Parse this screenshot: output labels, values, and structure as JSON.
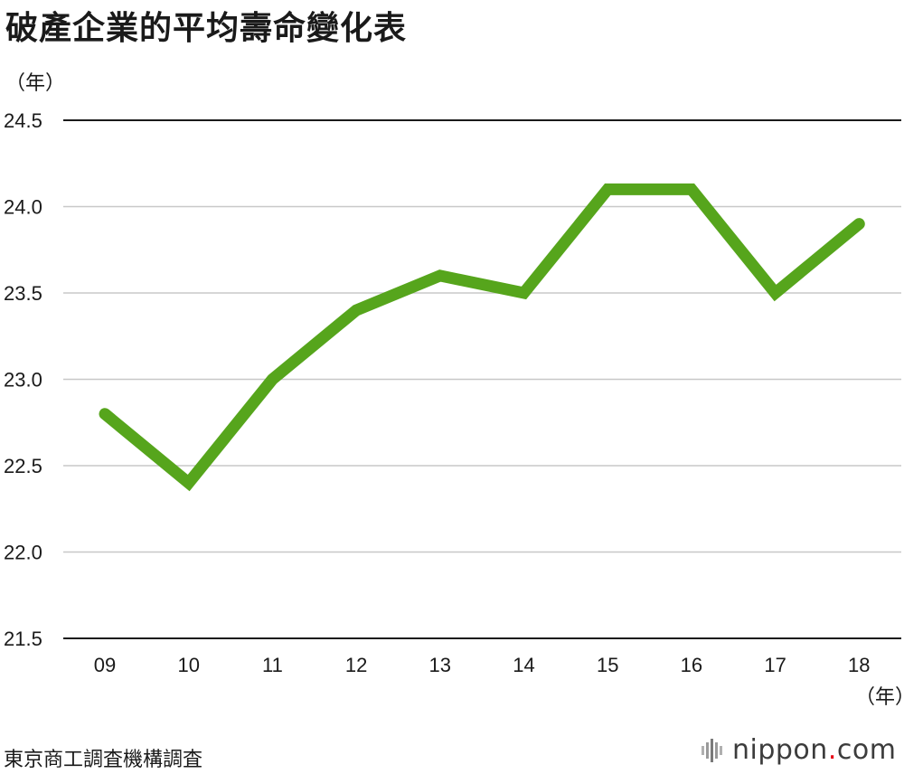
{
  "title": "破產企業的平均壽命變化表",
  "source": "東京商工調査機構調査",
  "brand": {
    "name": "nippon",
    "dot": ".",
    "tld": "com"
  },
  "chart_data": {
    "type": "line",
    "title": "破產企業的平均壽命變化表",
    "ylabel": "（年）",
    "xlabel": "（年）",
    "categories": [
      "09",
      "10",
      "11",
      "12",
      "13",
      "14",
      "15",
      "16",
      "17",
      "18"
    ],
    "series": [
      {
        "values": [
          22.8,
          22.4,
          23.0,
          23.4,
          23.6,
          23.5,
          24.1,
          24.1,
          23.5,
          23.9
        ]
      }
    ],
    "ylim": [
      21.5,
      24.5
    ],
    "yticks": [
      "21.5",
      "22.0",
      "22.5",
      "23.0",
      "23.5",
      "24.0",
      "24.5"
    ],
    "grid": true,
    "legend": "none",
    "line_color": "#56a51c"
  }
}
